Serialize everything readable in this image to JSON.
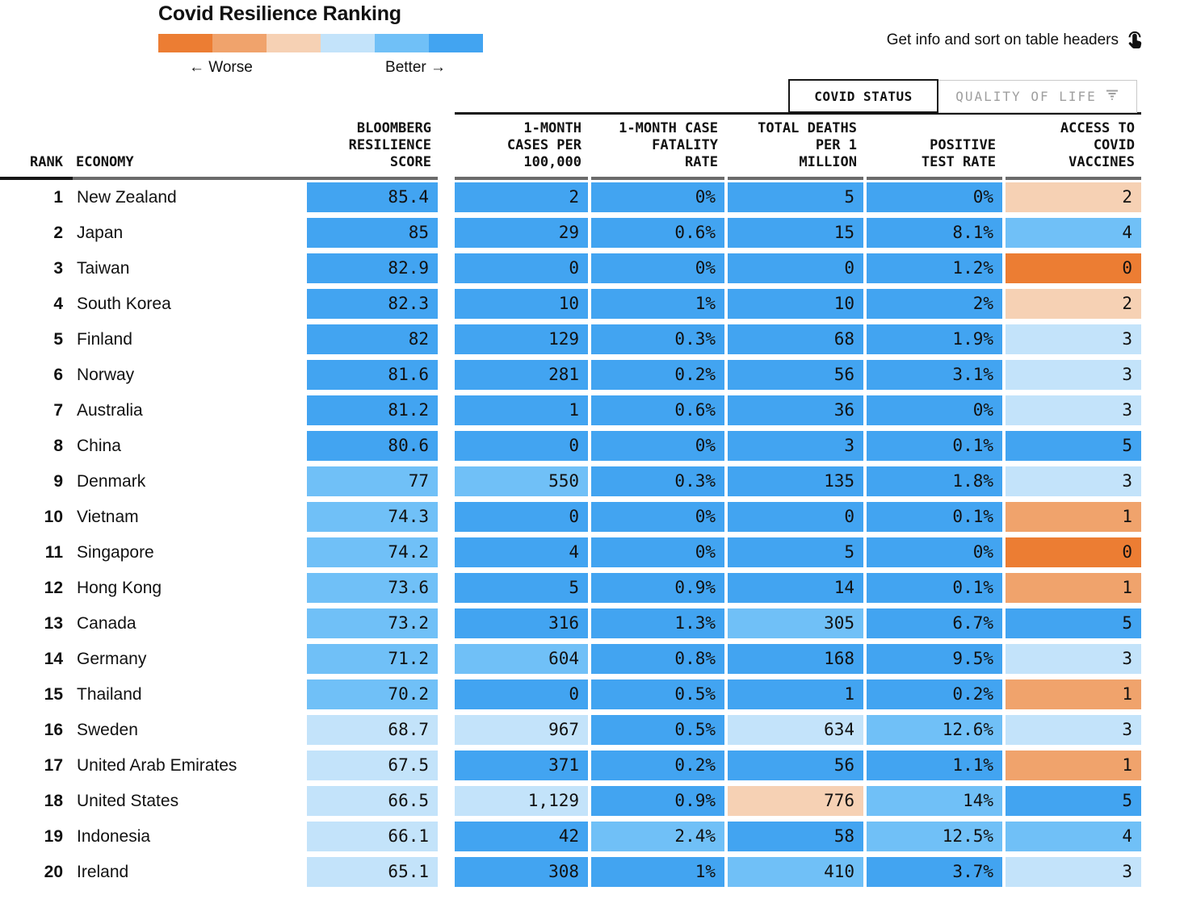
{
  "title": "Covid Resilience Ranking",
  "note": {
    "text": "Get info and sort on table headers"
  },
  "tabs": [
    {
      "label": "COVID STATUS",
      "active": true
    },
    {
      "label": "QUALITY OF LIFE",
      "active": false
    }
  ],
  "legend": {
    "worse_label": "← Worse",
    "better_label": "Better →",
    "order": [
      "o1",
      "o2",
      "o3",
      "b4",
      "b5",
      "b6"
    ]
  },
  "chart_data": {
    "type": "table",
    "title": "Covid Resilience Ranking",
    "palette": {
      "b6": "#42a4f1",
      "b5": "#70c0f7",
      "b4": "#c3e3fa",
      "o3": "#f6d1b4",
      "o2": "#f0a36c",
      "o1": "#ec7d33"
    },
    "color_scale_note": "orange = worse, blue = better",
    "columns": [
      {
        "key": "rank",
        "label": "RANK"
      },
      {
        "key": "economy",
        "label": "ECONOMY"
      },
      {
        "key": "bloomberg_resilience_score",
        "label": "BLOOMBERG\nRESILIENCE\nSCORE"
      },
      {
        "key": "one_month_cases_per_100000",
        "label": "1-MONTH\nCASES PER\n100,000"
      },
      {
        "key": "one_month_case_fatality_rate",
        "label": "1-MONTH CASE\nFATALITY\nRATE"
      },
      {
        "key": "total_deaths_per_1_million",
        "label": "TOTAL DEATHS\nPER 1\nMILLION"
      },
      {
        "key": "positive_test_rate",
        "label": "POSITIVE\nTEST RATE"
      },
      {
        "key": "access_to_covid_vaccines",
        "label": "ACCESS TO\nCOVID\nVACCINES"
      }
    ],
    "rows": [
      {
        "rank": "1",
        "economy": "New Zealand",
        "cells": [
          [
            "85.4",
            "b6"
          ],
          [
            "2",
            "b6"
          ],
          [
            "0%",
            "b6"
          ],
          [
            "5",
            "b6"
          ],
          [
            "0%",
            "b6"
          ],
          [
            "2",
            "o3"
          ]
        ]
      },
      {
        "rank": "2",
        "economy": "Japan",
        "cells": [
          [
            "85",
            "b6"
          ],
          [
            "29",
            "b6"
          ],
          [
            "0.6%",
            "b6"
          ],
          [
            "15",
            "b6"
          ],
          [
            "8.1%",
            "b6"
          ],
          [
            "4",
            "b5"
          ]
        ]
      },
      {
        "rank": "3",
        "economy": "Taiwan",
        "cells": [
          [
            "82.9",
            "b6"
          ],
          [
            "0",
            "b6"
          ],
          [
            "0%",
            "b6"
          ],
          [
            "0",
            "b6"
          ],
          [
            "1.2%",
            "b6"
          ],
          [
            "0",
            "o1"
          ]
        ]
      },
      {
        "rank": "4",
        "economy": "South Korea",
        "cells": [
          [
            "82.3",
            "b6"
          ],
          [
            "10",
            "b6"
          ],
          [
            "1%",
            "b6"
          ],
          [
            "10",
            "b6"
          ],
          [
            "2%",
            "b6"
          ],
          [
            "2",
            "o3"
          ]
        ]
      },
      {
        "rank": "5",
        "economy": "Finland",
        "cells": [
          [
            "82",
            "b6"
          ],
          [
            "129",
            "b6"
          ],
          [
            "0.3%",
            "b6"
          ],
          [
            "68",
            "b6"
          ],
          [
            "1.9%",
            "b6"
          ],
          [
            "3",
            "b4"
          ]
        ]
      },
      {
        "rank": "6",
        "economy": "Norway",
        "cells": [
          [
            "81.6",
            "b6"
          ],
          [
            "281",
            "b6"
          ],
          [
            "0.2%",
            "b6"
          ],
          [
            "56",
            "b6"
          ],
          [
            "3.1%",
            "b6"
          ],
          [
            "3",
            "b4"
          ]
        ]
      },
      {
        "rank": "7",
        "economy": "Australia",
        "cells": [
          [
            "81.2",
            "b6"
          ],
          [
            "1",
            "b6"
          ],
          [
            "0.6%",
            "b6"
          ],
          [
            "36",
            "b6"
          ],
          [
            "0%",
            "b6"
          ],
          [
            "3",
            "b4"
          ]
        ]
      },
      {
        "rank": "8",
        "economy": "China",
        "cells": [
          [
            "80.6",
            "b6"
          ],
          [
            "0",
            "b6"
          ],
          [
            "0%",
            "b6"
          ],
          [
            "3",
            "b6"
          ],
          [
            "0.1%",
            "b6"
          ],
          [
            "5",
            "b6"
          ]
        ]
      },
      {
        "rank": "9",
        "economy": "Denmark",
        "cells": [
          [
            "77",
            "b5"
          ],
          [
            "550",
            "b5"
          ],
          [
            "0.3%",
            "b6"
          ],
          [
            "135",
            "b6"
          ],
          [
            "1.8%",
            "b6"
          ],
          [
            "3",
            "b4"
          ]
        ]
      },
      {
        "rank": "10",
        "economy": "Vietnam",
        "cells": [
          [
            "74.3",
            "b5"
          ],
          [
            "0",
            "b6"
          ],
          [
            "0%",
            "b6"
          ],
          [
            "0",
            "b6"
          ],
          [
            "0.1%",
            "b6"
          ],
          [
            "1",
            "o2"
          ]
        ]
      },
      {
        "rank": "11",
        "economy": "Singapore",
        "cells": [
          [
            "74.2",
            "b5"
          ],
          [
            "4",
            "b6"
          ],
          [
            "0%",
            "b6"
          ],
          [
            "5",
            "b6"
          ],
          [
            "0%",
            "b6"
          ],
          [
            "0",
            "o1"
          ]
        ]
      },
      {
        "rank": "12",
        "economy": "Hong Kong",
        "cells": [
          [
            "73.6",
            "b5"
          ],
          [
            "5",
            "b6"
          ],
          [
            "0.9%",
            "b6"
          ],
          [
            "14",
            "b6"
          ],
          [
            "0.1%",
            "b6"
          ],
          [
            "1",
            "o2"
          ]
        ]
      },
      {
        "rank": "13",
        "economy": "Canada",
        "cells": [
          [
            "73.2",
            "b5"
          ],
          [
            "316",
            "b6"
          ],
          [
            "1.3%",
            "b6"
          ],
          [
            "305",
            "b5"
          ],
          [
            "6.7%",
            "b6"
          ],
          [
            "5",
            "b6"
          ]
        ]
      },
      {
        "rank": "14",
        "economy": "Germany",
        "cells": [
          [
            "71.2",
            "b5"
          ],
          [
            "604",
            "b5"
          ],
          [
            "0.8%",
            "b6"
          ],
          [
            "168",
            "b6"
          ],
          [
            "9.5%",
            "b6"
          ],
          [
            "3",
            "b4"
          ]
        ]
      },
      {
        "rank": "15",
        "economy": "Thailand",
        "cells": [
          [
            "70.2",
            "b5"
          ],
          [
            "0",
            "b6"
          ],
          [
            "0.5%",
            "b6"
          ],
          [
            "1",
            "b6"
          ],
          [
            "0.2%",
            "b6"
          ],
          [
            "1",
            "o2"
          ]
        ]
      },
      {
        "rank": "16",
        "economy": "Sweden",
        "cells": [
          [
            "68.7",
            "b4"
          ],
          [
            "967",
            "b4"
          ],
          [
            "0.5%",
            "b6"
          ],
          [
            "634",
            "b4"
          ],
          [
            "12.6%",
            "b5"
          ],
          [
            "3",
            "b4"
          ]
        ]
      },
      {
        "rank": "17",
        "economy": "United Arab Emirates",
        "cells": [
          [
            "67.5",
            "b4"
          ],
          [
            "371",
            "b6"
          ],
          [
            "0.2%",
            "b6"
          ],
          [
            "56",
            "b6"
          ],
          [
            "1.1%",
            "b6"
          ],
          [
            "1",
            "o2"
          ]
        ]
      },
      {
        "rank": "18",
        "economy": "United States",
        "cells": [
          [
            "66.5",
            "b4"
          ],
          [
            "1,129",
            "b4"
          ],
          [
            "0.9%",
            "b6"
          ],
          [
            "776",
            "o3"
          ],
          [
            "14%",
            "b5"
          ],
          [
            "5",
            "b6"
          ]
        ]
      },
      {
        "rank": "19",
        "economy": "Indonesia",
        "cells": [
          [
            "66.1",
            "b4"
          ],
          [
            "42",
            "b6"
          ],
          [
            "2.4%",
            "b5"
          ],
          [
            "58",
            "b6"
          ],
          [
            "12.5%",
            "b5"
          ],
          [
            "4",
            "b5"
          ]
        ]
      },
      {
        "rank": "20",
        "economy": "Ireland",
        "cells": [
          [
            "65.1",
            "b4"
          ],
          [
            "308",
            "b6"
          ],
          [
            "1%",
            "b6"
          ],
          [
            "410",
            "b5"
          ],
          [
            "3.7%",
            "b6"
          ],
          [
            "3",
            "b4"
          ]
        ]
      }
    ]
  }
}
